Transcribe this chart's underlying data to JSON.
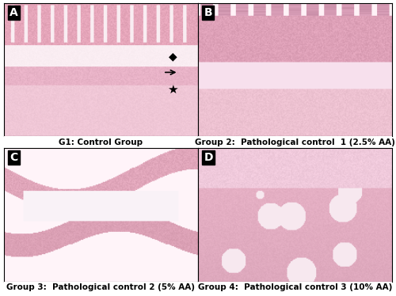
{
  "panel_labels": [
    "A",
    "B",
    "C",
    "D"
  ],
  "captions": [
    "G1: Control Group",
    "Group 2:  Pathological control  1 (2.5% AA)",
    "Group 3:  Pathological control 2 (5% AA)",
    "Group 4:  Pathological control 3 (10% AA)"
  ],
  "label_box_color": "#000000",
  "label_text_color": "#ffffff",
  "caption_text_color": "#000000",
  "background_color": "#ffffff",
  "border_color": "#000000",
  "caption_fontsize": 7.5,
  "label_fontsize": 10
}
